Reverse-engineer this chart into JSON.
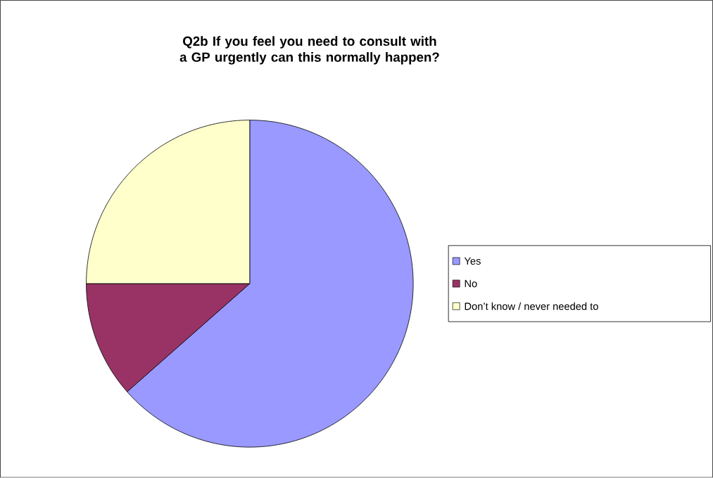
{
  "chart_data": {
    "type": "pie",
    "title": "Q2b If you feel you need to consult with a GP urgently can this normally happen?",
    "categories": [
      "Yes",
      "No",
      "Don’t know / never needed to"
    ],
    "values": [
      63.5,
      11.5,
      25
    ],
    "colors": [
      "#9999ff",
      "#993366",
      "#ffffcc"
    ],
    "legend": "right"
  }
}
